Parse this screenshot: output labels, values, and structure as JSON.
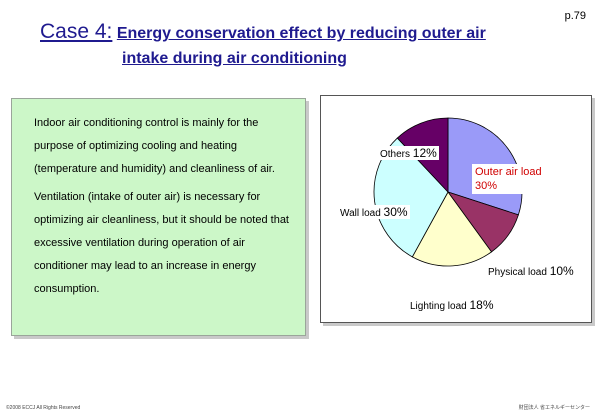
{
  "page": {
    "number": "p.79"
  },
  "title": {
    "case_label": "Case 4:",
    "line1_rest": "Energy conservation effect by reducing outer air",
    "line2": "intake during air conditioning"
  },
  "body": {
    "paragraph1": "Indoor air conditioning control is mainly for the purpose of optimizing cooling and heating (temperature and humidity) and cleanliness of air.",
    "paragraph2": "Ventilation (intake of outer air) is necessary for optimizing air cleanliness, but it should be noted that excessive ventilation during operation of air conditioner may lead to an increase in energy consumption."
  },
  "chart_data": {
    "type": "pie",
    "slices": [
      {
        "label": "Outer air load",
        "value": 30,
        "color": "#9a9af8"
      },
      {
        "label": "Physical load",
        "value": 10,
        "color": "#993366"
      },
      {
        "label": "Lighting load",
        "value": 18,
        "color": "#ffffcc"
      },
      {
        "label": "Wall load",
        "value": 30,
        "color": "#ccffff"
      },
      {
        "label": "Others",
        "value": 12,
        "color": "#660066"
      }
    ],
    "labels": {
      "outer_name": "Outer air load",
      "outer_pct": "30%",
      "physical_name": "Physical load",
      "physical_pct": "10%",
      "lighting_name": "Lighting load",
      "lighting_pct": "18%",
      "wall_name": "Wall load",
      "wall_pct": "30%",
      "others_name": "Others",
      "others_pct": "12%"
    }
  },
  "footer": {
    "left": "©2008 ECCJ All Rights Reserved",
    "right": "財団法人 省エネルギーセンター"
  }
}
